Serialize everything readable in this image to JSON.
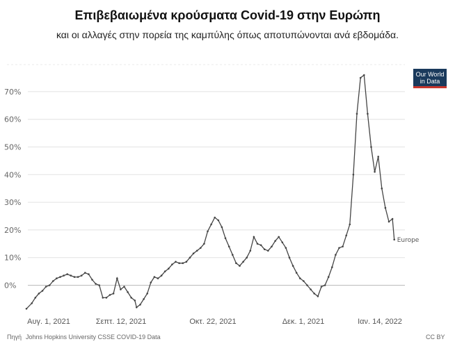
{
  "header": {
    "title": "Επιβεβαιωμένα κρούσματα Covid-19 στην Ευρώπη",
    "subtitle": "και οι αλλαγές στην πορεία της καμπύλης όπως αποτυπώνονται ανά εβδομάδα."
  },
  "logo": {
    "line1": "Our World",
    "line2": "in Data",
    "colors": {
      "background": "#1a3a5c",
      "accent": "#c8372d"
    }
  },
  "footer": {
    "source_label": "Πηγή",
    "source_text": "Johns Hopkins University CSSE COVID-19 Data",
    "license": "CC BY"
  },
  "chart_data": {
    "type": "line",
    "x_tick_labels": [
      "Αυγ. 1, 2021",
      "Σεπτ. 12, 2021",
      "Οκτ. 22, 2021",
      "Δεκ. 1, 2021",
      "Ιαν. 14, 2022"
    ],
    "y_tick_labels": [
      "0%",
      "10%",
      "20%",
      "30%",
      "40%",
      "50%",
      "60%",
      "70%"
    ],
    "ylim": [
      -10,
      75
    ],
    "x_range": [
      "2021-07-10",
      "2022-02-08"
    ],
    "grid": true,
    "line_color": "#444444",
    "series": [
      {
        "name": "Europe",
        "points": [
          [
            "2021-07-10",
            -8.5
          ],
          [
            "2021-07-13",
            -6.5
          ],
          [
            "2021-07-15",
            -4.5
          ],
          [
            "2021-07-17",
            -3
          ],
          [
            "2021-07-19",
            -2
          ],
          [
            "2021-07-21",
            -0.5
          ],
          [
            "2021-07-23",
            0
          ],
          [
            "2021-07-25",
            1.5
          ],
          [
            "2021-07-27",
            2.5
          ],
          [
            "2021-07-29",
            3
          ],
          [
            "2021-07-31",
            3.5
          ],
          [
            "2021-08-02",
            4
          ],
          [
            "2021-08-04",
            3.5
          ],
          [
            "2021-08-06",
            3
          ],
          [
            "2021-08-08",
            3
          ],
          [
            "2021-08-10",
            3.5
          ],
          [
            "2021-08-12",
            4.5
          ],
          [
            "2021-08-14",
            4
          ],
          [
            "2021-08-16",
            2
          ],
          [
            "2021-08-18",
            0.5
          ],
          [
            "2021-08-20",
            0
          ],
          [
            "2021-08-22",
            -4.5
          ],
          [
            "2021-08-24",
            -4.5
          ],
          [
            "2021-08-26",
            -3.5
          ],
          [
            "2021-08-28",
            -3
          ],
          [
            "2021-08-30",
            2.5
          ],
          [
            "2021-09-01",
            -1.5
          ],
          [
            "2021-09-03",
            -0.5
          ],
          [
            "2021-09-05",
            -2.5
          ],
          [
            "2021-09-07",
            -4.5
          ],
          [
            "2021-09-09",
            -5.5
          ],
          [
            "2021-09-10",
            -8
          ],
          [
            "2021-09-12",
            -7
          ],
          [
            "2021-09-14",
            -5
          ],
          [
            "2021-09-16",
            -3
          ],
          [
            "2021-09-18",
            1
          ],
          [
            "2021-09-20",
            3
          ],
          [
            "2021-09-22",
            2.5
          ],
          [
            "2021-09-24",
            3.5
          ],
          [
            "2021-09-26",
            5
          ],
          [
            "2021-09-28",
            6
          ],
          [
            "2021-09-30",
            7.5
          ],
          [
            "2021-10-02",
            8.5
          ],
          [
            "2021-10-04",
            8
          ],
          [
            "2021-10-06",
            8
          ],
          [
            "2021-10-08",
            8.5
          ],
          [
            "2021-10-10",
            10
          ],
          [
            "2021-10-12",
            11.5
          ],
          [
            "2021-10-14",
            12.5
          ],
          [
            "2021-10-16",
            13.5
          ],
          [
            "2021-10-18",
            15
          ],
          [
            "2021-10-20",
            19.5
          ],
          [
            "2021-10-22",
            22
          ],
          [
            "2021-10-24",
            24.5
          ],
          [
            "2021-10-26",
            23.5
          ],
          [
            "2021-10-28",
            21
          ],
          [
            "2021-10-30",
            17
          ],
          [
            "2021-11-01",
            14
          ],
          [
            "2021-11-03",
            11
          ],
          [
            "2021-11-05",
            8
          ],
          [
            "2021-11-07",
            7
          ],
          [
            "2021-11-09",
            8.5
          ],
          [
            "2021-11-11",
            10
          ],
          [
            "2021-11-13",
            12.5
          ],
          [
            "2021-11-15",
            17.5
          ],
          [
            "2021-11-17",
            15
          ],
          [
            "2021-11-19",
            14.5
          ],
          [
            "2021-11-21",
            13
          ],
          [
            "2021-11-23",
            12.5
          ],
          [
            "2021-11-25",
            14
          ],
          [
            "2021-11-27",
            16
          ],
          [
            "2021-11-29",
            17.5
          ],
          [
            "2021-12-01",
            15.5
          ],
          [
            "2021-12-03",
            13.5
          ],
          [
            "2021-12-05",
            10
          ],
          [
            "2021-12-07",
            7
          ],
          [
            "2021-12-09",
            4.5
          ],
          [
            "2021-12-11",
            2.5
          ],
          [
            "2021-12-13",
            1.5
          ],
          [
            "2021-12-15",
            0
          ],
          [
            "2021-12-17",
            -1.5
          ],
          [
            "2021-12-19",
            -3
          ],
          [
            "2021-12-21",
            -4
          ],
          [
            "2021-12-23",
            -0.5
          ],
          [
            "2021-12-25",
            0
          ],
          [
            "2021-12-27",
            3
          ],
          [
            "2021-12-29",
            6.5
          ],
          [
            "2021-12-31",
            11
          ],
          [
            "2022-01-02",
            13.5
          ],
          [
            "2022-01-04",
            14
          ],
          [
            "2022-01-06",
            18
          ],
          [
            "2022-01-08",
            22
          ],
          [
            "2022-01-10",
            40
          ],
          [
            "2022-01-12",
            62
          ],
          [
            "2022-01-14",
            75
          ],
          [
            "2022-01-16",
            76
          ],
          [
            "2022-01-18",
            62
          ],
          [
            "2022-01-20",
            50
          ],
          [
            "2022-01-22",
            41
          ],
          [
            "2022-01-24",
            46.5
          ],
          [
            "2022-01-26",
            35
          ],
          [
            "2022-01-28",
            28
          ],
          [
            "2022-01-30",
            23
          ],
          [
            "2022-02-01",
            24
          ],
          [
            "2022-02-02",
            16.5
          ]
        ]
      }
    ]
  }
}
